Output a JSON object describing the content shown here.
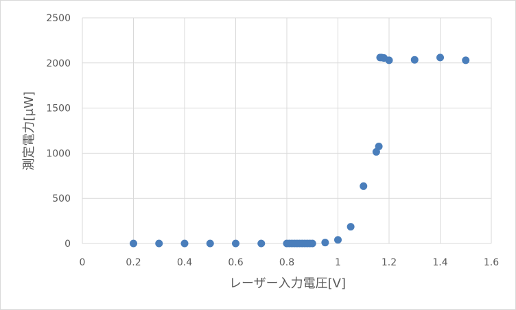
{
  "chart_data": {
    "type": "scatter",
    "title": "",
    "xlabel": "レーザー入力電圧[V]",
    "ylabel": "測定電力[μW]",
    "xlim": [
      0,
      1.6
    ],
    "ylim": [
      0,
      2500
    ],
    "x_ticks": [
      "0",
      "0.2",
      "0.4",
      "0.6",
      "0.8",
      "1",
      "1.2",
      "1.4",
      "1.6"
    ],
    "y_ticks": [
      "0",
      "500",
      "1000",
      "1500",
      "2000",
      "2500"
    ],
    "grid": true,
    "legend": "none",
    "series_color": "#4a7ebb",
    "series": [
      {
        "x": [
          0.2,
          0.3,
          0.4,
          0.5,
          0.6,
          0.7,
          0.8,
          0.81,
          0.82,
          0.83,
          0.84,
          0.85,
          0.86,
          0.87,
          0.88,
          0.89,
          0.9,
          0.95,
          1.0,
          1.05,
          1.1,
          1.15,
          1.16,
          1.165,
          1.17,
          1.18,
          1.2,
          1.3,
          1.4,
          1.5
        ],
        "y": [
          0,
          0,
          0,
          0,
          0,
          0,
          0,
          0,
          0,
          0,
          0,
          0,
          0,
          0,
          0,
          0,
          0,
          10,
          40,
          185,
          635,
          1015,
          1075,
          2060,
          2060,
          2055,
          2030,
          2035,
          2060,
          2030
        ]
      }
    ]
  }
}
